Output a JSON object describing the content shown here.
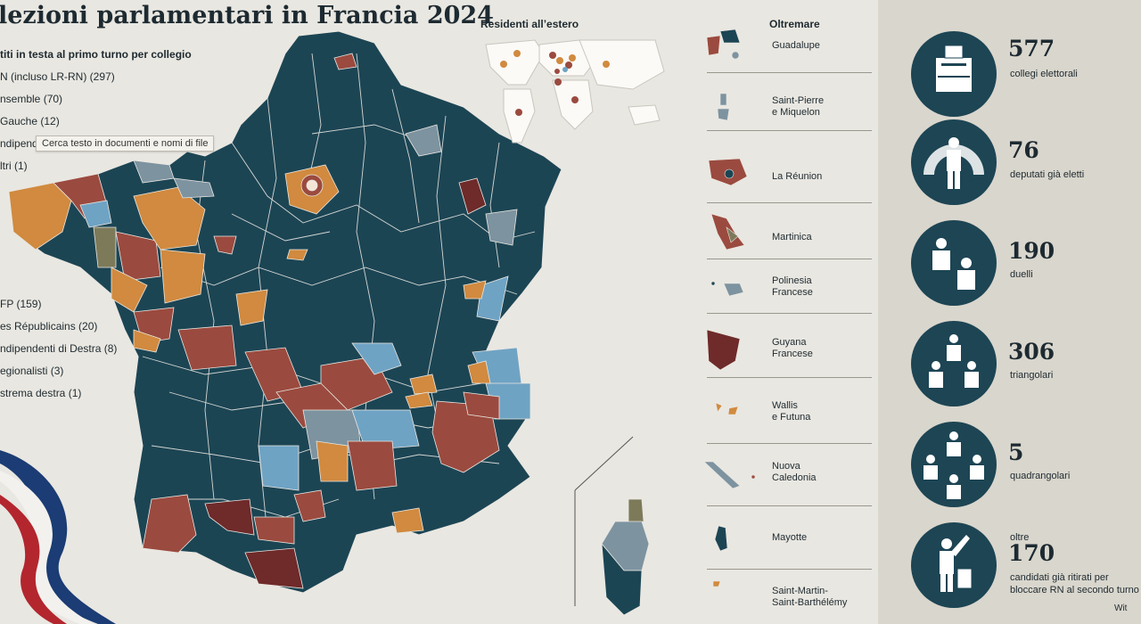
{
  "title": "lezioni parlamentari in Francia 2024",
  "legend": {
    "heading": "titi in testa al primo turno per collegio",
    "items": [
      {
        "label": "N (incluso LR-RN) (297)",
        "color": "#1c4554"
      },
      {
        "label": "nsemble (70)",
        "color": "#d18a3f"
      },
      {
        "label": "Gauche (12)",
        "color": "#6fa3c4"
      },
      {
        "label": "ndipend",
        "color": "#8f9d8a"
      },
      {
        "label": "ltri (1)",
        "color": "#aaa"
      },
      {
        "label": "FP (159)",
        "color": "#9b4a3f"
      },
      {
        "label": "es Républicains (20)",
        "color": "#7d93a0"
      },
      {
        "label": "ndipendenti di Destra (8)",
        "color": "#6f2a2a"
      },
      {
        "label": "egionalisti (3)",
        "color": "#7d7a5a"
      },
      {
        "label": "strema destra (1)",
        "color": "#3a2020"
      }
    ]
  },
  "tooltip": "Cerca testo in documenti e nomi di file",
  "abroad": {
    "title": "Residenti all’estero"
  },
  "overseas": {
    "title": "Oltremare",
    "territories": [
      {
        "label": "Guadalupe"
      },
      {
        "label": "Saint-Pierre\ne Miquelon"
      },
      {
        "label": "La Réunion"
      },
      {
        "label": "Martinica"
      },
      {
        "label": "Polinesia\nFrancese"
      },
      {
        "label": "Guyana\nFrancese"
      },
      {
        "label": "Wallis\ne Futuna"
      },
      {
        "label": "Nuova\nCaledonia"
      },
      {
        "label": "Mayotte"
      },
      {
        "label": "Saint-Martin-\nSaint-Barthélémy"
      }
    ]
  },
  "stats": [
    {
      "prefix": "",
      "number": "577",
      "label": "collegi elettorali",
      "icon": "ballot-box-icon"
    },
    {
      "prefix": "",
      "number": "76",
      "label": "deputati già eletti",
      "icon": "parliament-deputy-icon"
    },
    {
      "prefix": "",
      "number": "190",
      "label": "duelli",
      "icon": "duel-icon"
    },
    {
      "prefix": "",
      "number": "306",
      "label": "triangolari",
      "icon": "triangular-icon"
    },
    {
      "prefix": "",
      "number": "5",
      "label": "quadrangolari",
      "icon": "quadrangular-icon"
    },
    {
      "prefix": "oltre",
      "number": "170",
      "label": "candidati già ritirati per\nbloccare RN al secondo turno",
      "icon": "withdrawing-candidate-icon"
    }
  ],
  "credit": "Wit",
  "colors": {
    "rn": "#1c4554",
    "nfp": "#9b4a3f",
    "ensemble": "#d18a3f",
    "lr": "#7d93a0",
    "gauche": "#6fa3c4",
    "dark_red": "#6f2a2a",
    "olive": "#7d7a5a"
  }
}
